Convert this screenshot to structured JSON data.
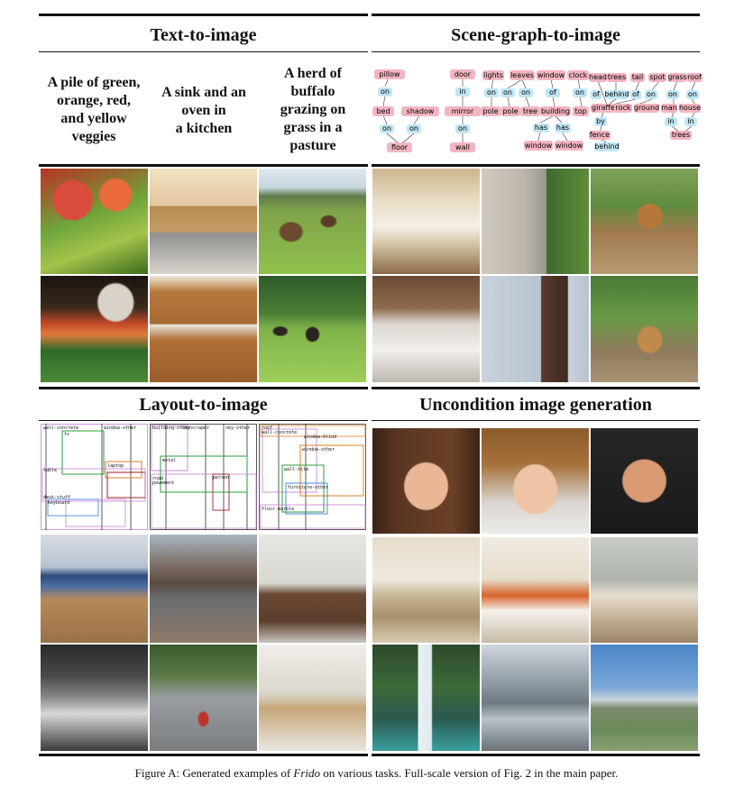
{
  "sections": {
    "t2i": "Text-to-image",
    "sg2i": "Scene-graph-to-image",
    "l2i": "Layout-to-image",
    "uncond": "Uncondition image generation"
  },
  "prompts": [
    [
      "A pile of green,",
      "orange, red,",
      "and yellow",
      "veggies"
    ],
    [
      "A sink and an",
      "oven in",
      "a kitchen"
    ],
    [
      "A herd of",
      "buffalo",
      "grazing on",
      "grass in a",
      "pasture"
    ]
  ],
  "scene_graph": {
    "g1": [
      "pillow",
      "on",
      "bed",
      "shadow",
      "on",
      "on",
      "floor"
    ],
    "g2": [
      "door",
      "in",
      "mirror",
      "on",
      "wall"
    ],
    "g3": [
      "lights",
      "leaves",
      "window",
      "clock",
      "on",
      "on",
      "on",
      "of",
      "on",
      "pole",
      "pole",
      "tree",
      "building",
      "top",
      "has",
      "has",
      "window",
      "window"
    ],
    "g4": [
      "head",
      "trees",
      "tail",
      "spot",
      "grass",
      "roof",
      "of",
      "behind",
      "of",
      "on",
      "on",
      "on",
      "giraffe",
      "rock",
      "ground",
      "man",
      "house",
      "by",
      "in",
      "in",
      "fence",
      "trees",
      "behind"
    ]
  },
  "layout_labels": {
    "p1": [
      "wall-concrete",
      "window-other",
      "tv",
      "laptop",
      "table",
      "desk-stuff",
      "keyboard"
    ],
    "p2": [
      "building-other",
      "skyscraper",
      "sky-other",
      "metal",
      "road",
      "pavement",
      "person"
    ],
    "p3": [
      "roof",
      "window-blind",
      "wall-concrete",
      "window-other",
      "wall-tile",
      "furniture-other",
      "floor-marble"
    ]
  },
  "caption": {
    "prefix": "Figure A: Generated examples of ",
    "name": "Frido",
    "suffix": " on various tasks. Full-scale version of Fig. 2 in the main paper."
  },
  "colors": {
    "node_fill": "#f3b5c0",
    "edge_fill": "#bfe6f4",
    "layout_boxes": [
      "#2a9d3a",
      "#d9822b",
      "#a0522d",
      "#c77dd6",
      "#3a7bd5",
      "#9b2226",
      "#6c757d"
    ]
  }
}
